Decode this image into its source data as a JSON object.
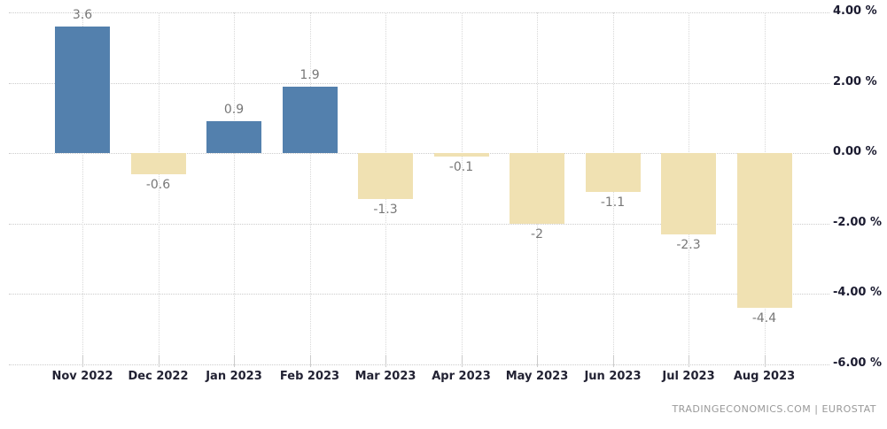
{
  "chart_data": {
    "type": "bar",
    "title": "",
    "xlabel": "",
    "ylabel": "",
    "categories": [
      "Nov 2022",
      "Dec 2022",
      "Jan 2023",
      "Feb 2023",
      "Mar 2023",
      "Apr 2023",
      "May 2023",
      "Jun 2023",
      "Jul 2023",
      "Aug 2023"
    ],
    "values": [
      3.6,
      -0.6,
      0.9,
      1.9,
      -1.3,
      -0.1,
      -2,
      -1.1,
      -2.3,
      -4.4
    ],
    "value_labels": [
      "3.6",
      "-0.6",
      "0.9",
      "1.9",
      "-1.3",
      "-0.1",
      "-2",
      "-1.1",
      "-2.3",
      "-4.4"
    ],
    "y_axis": {
      "side": "right",
      "range": [
        -6,
        4
      ],
      "ticks": [
        4,
        2,
        0,
        -2,
        -4,
        -6
      ],
      "tick_labels": [
        "4.00 %",
        "2.00 %",
        "0.00 %",
        "-2.00 %",
        "-4.00 %",
        "-6.00 %"
      ],
      "unit": "%"
    },
    "grid": true,
    "legend": false,
    "colors": {
      "positive_bar": "#5380ad",
      "negative_bar": "#f0e1b2",
      "gridline": "#cccccc",
      "value_label": "#777777",
      "axis_label": "#222233"
    }
  },
  "footer": {
    "source_text": "TRADINGECONOMICS.COM  |  EUROSTAT"
  }
}
